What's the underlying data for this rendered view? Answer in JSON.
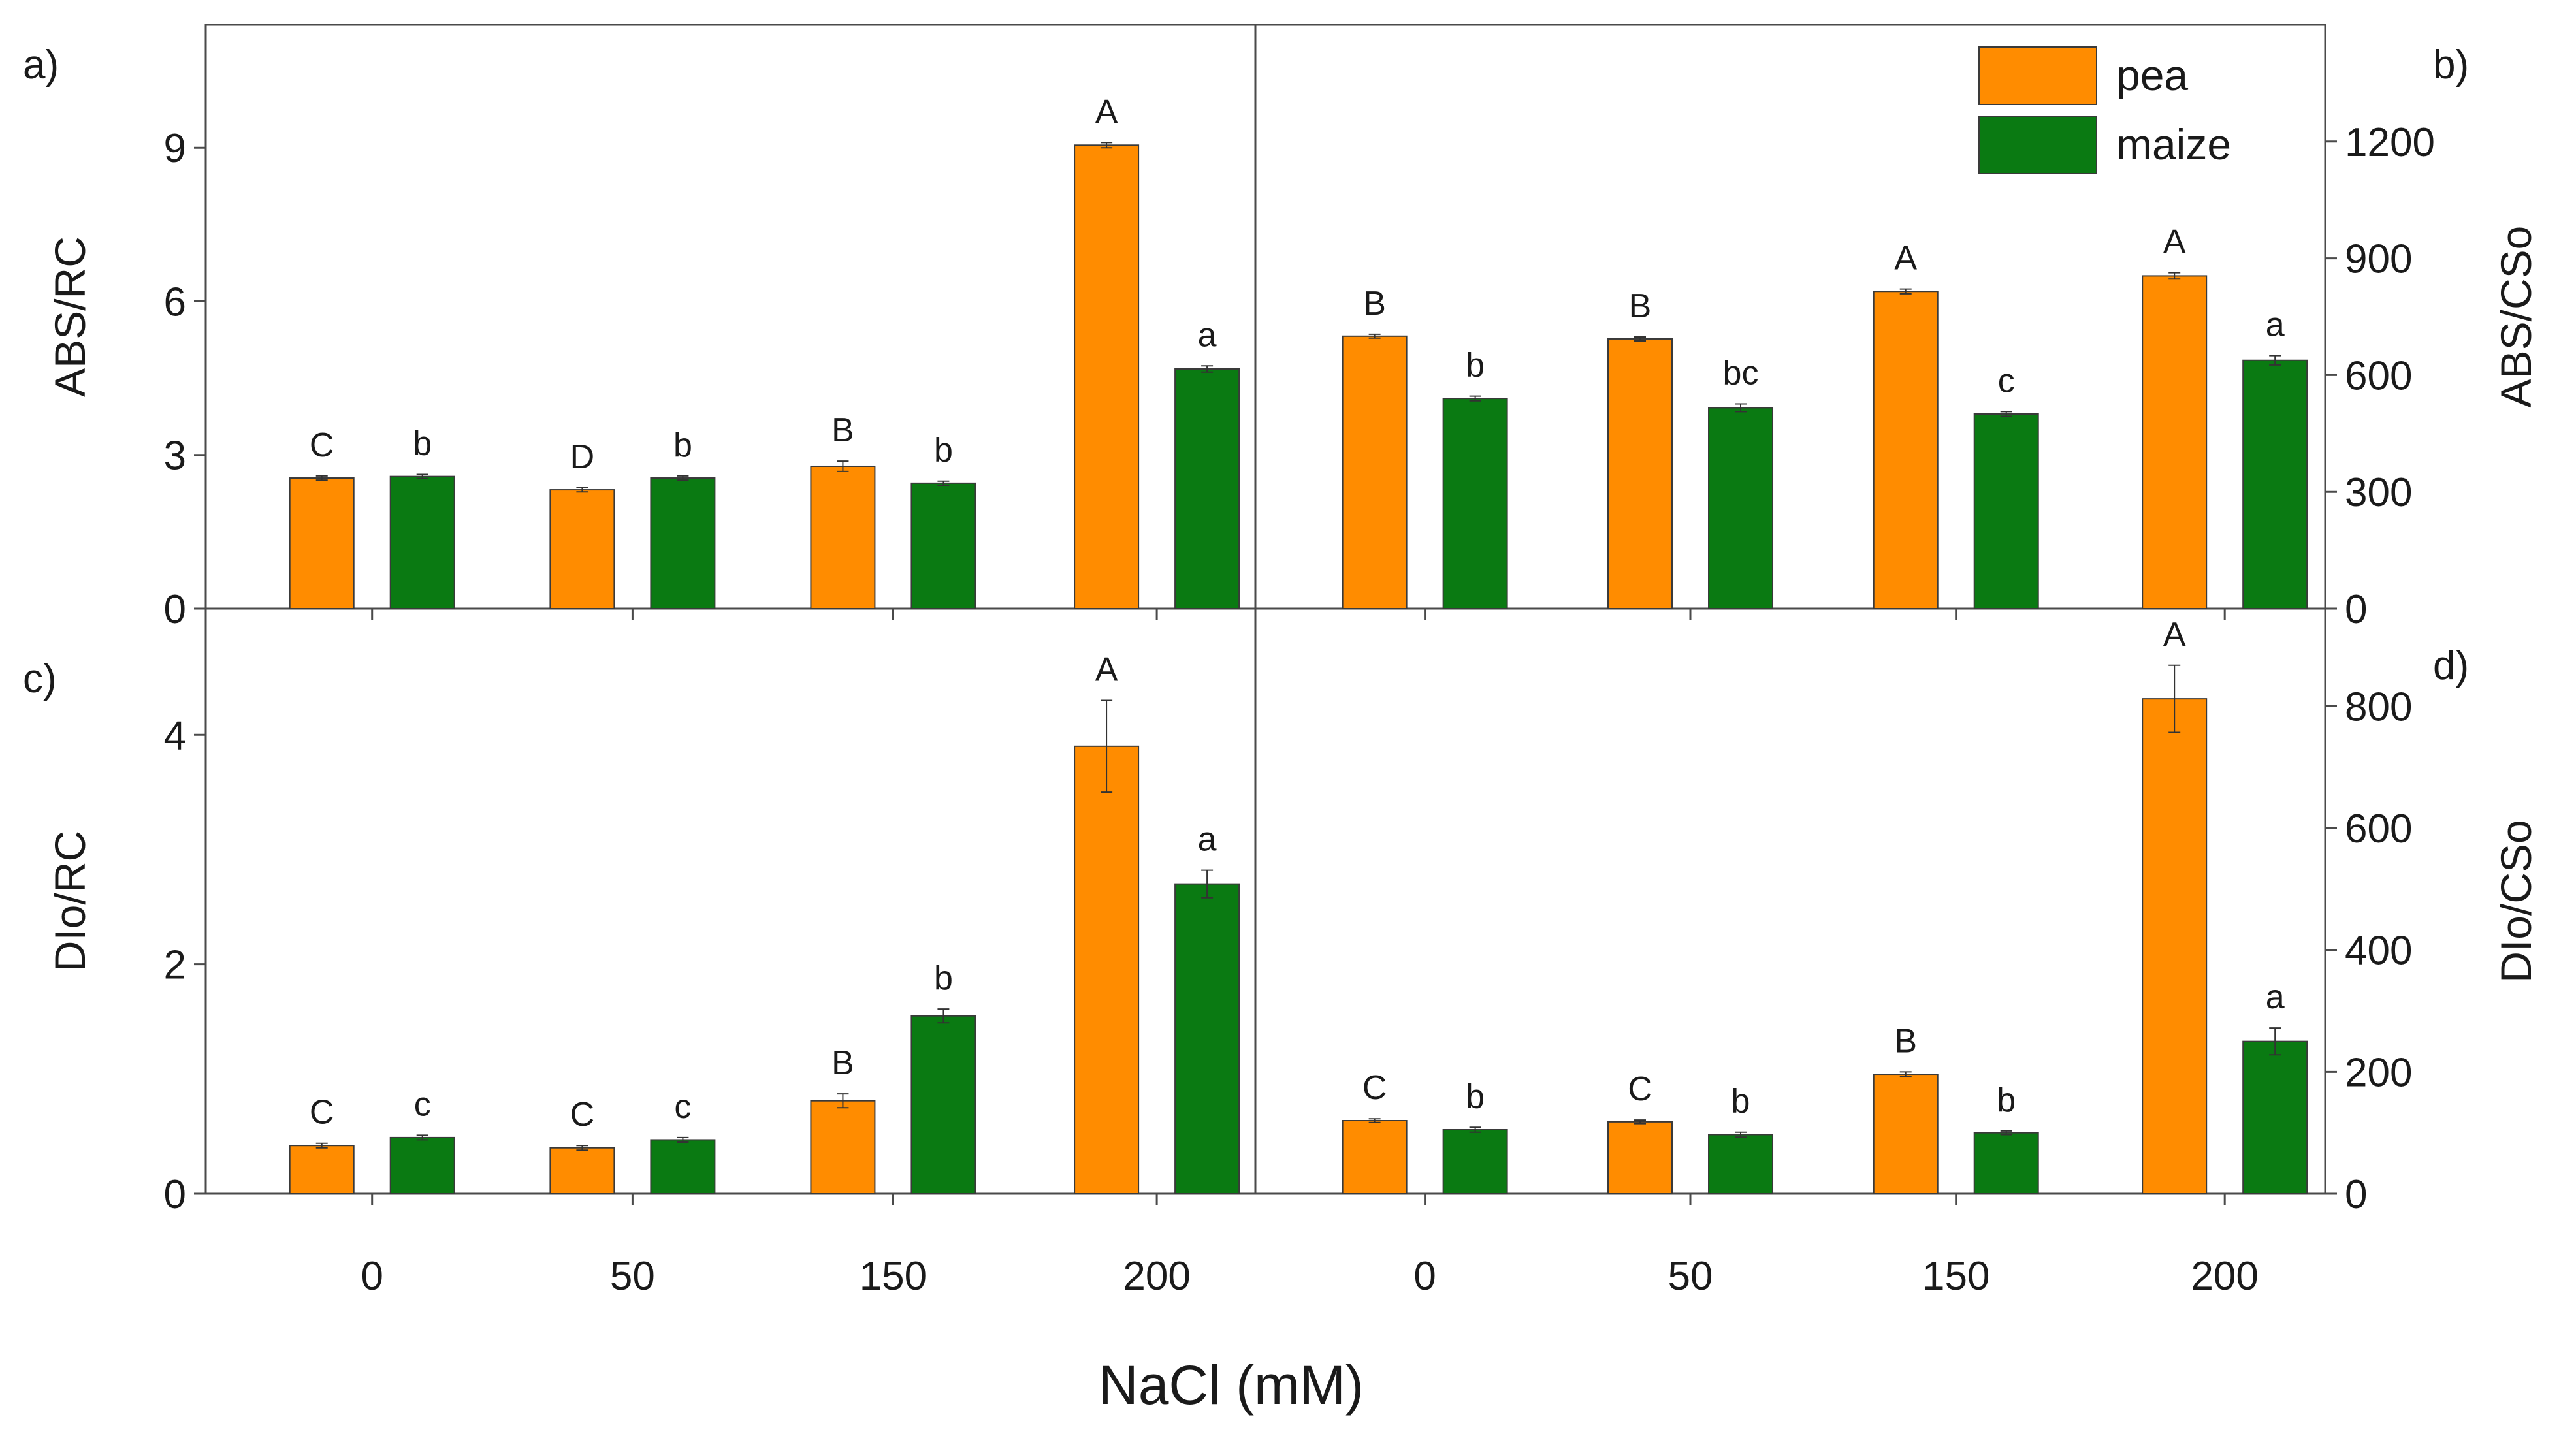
{
  "colors": {
    "pea": "#ff8c00",
    "maize": "#0a7a12",
    "axis": "#4a4a4a",
    "text": "#1a1a1a"
  },
  "legend": [
    {
      "name": "pea",
      "color": "#ff8c00"
    },
    {
      "name": "maize",
      "color": "#0a7a12"
    }
  ],
  "x_axis_title": "NaCl (mM)",
  "chart_data": [
    {
      "type": "bar",
      "panel_label": "a)",
      "ylabel": "ABS/RC",
      "categories": [
        "0",
        "50",
        "150",
        "200"
      ],
      "ylim": [
        0,
        11.4
      ],
      "yticks": [
        0,
        3,
        6,
        9
      ],
      "ytick_labels": [
        "0",
        "3",
        "6",
        "9"
      ],
      "series": [
        {
          "name": "pea",
          "values": [
            2.55,
            2.32,
            2.78,
            9.05
          ],
          "errors": [
            0.04,
            0.04,
            0.1,
            0.05
          ],
          "sig": [
            "C",
            "D",
            "B",
            "A"
          ]
        },
        {
          "name": "maize",
          "values": [
            2.58,
            2.55,
            2.45,
            4.68
          ],
          "errors": [
            0.04,
            0.04,
            0.04,
            0.06
          ],
          "sig": [
            "b",
            "b",
            "b",
            "a"
          ]
        }
      ]
    },
    {
      "type": "bar",
      "panel_label": "b)",
      "ylabel": "ABS/CSo",
      "categories": [
        "0",
        "50",
        "150",
        "200"
      ],
      "ylim": [
        0,
        1500
      ],
      "yticks": [
        0,
        300,
        600,
        900,
        1200
      ],
      "ytick_labels": [
        "0",
        "300",
        "600",
        "900",
        "1200"
      ],
      "series": [
        {
          "name": "pea",
          "values": [
            700,
            693,
            815,
            855
          ],
          "errors": [
            5,
            5,
            6,
            8
          ],
          "sig": [
            "B",
            "B",
            "A",
            "A"
          ]
        },
        {
          "name": "maize",
          "values": [
            540,
            516,
            500,
            638
          ],
          "errors": [
            6,
            10,
            6,
            12
          ],
          "sig": [
            "b",
            "bc",
            "c",
            "a"
          ]
        }
      ]
    },
    {
      "type": "bar",
      "panel_label": "c)",
      "ylabel": "DIo/RC",
      "categories": [
        "0",
        "50",
        "150",
        "200"
      ],
      "ylim": [
        0,
        5.1
      ],
      "yticks": [
        0,
        2,
        4
      ],
      "ytick_labels": [
        "0",
        "2",
        "4"
      ],
      "series": [
        {
          "name": "pea",
          "values": [
            0.42,
            0.4,
            0.81,
            3.9
          ],
          "errors": [
            0.02,
            0.02,
            0.06,
            0.4
          ],
          "sig": [
            "C",
            "C",
            "B",
            "A"
          ]
        },
        {
          "name": "maize",
          "values": [
            0.49,
            0.47,
            1.55,
            2.7
          ],
          "errors": [
            0.02,
            0.02,
            0.06,
            0.12
          ],
          "sig": [
            "c",
            "c",
            "b",
            "a"
          ]
        }
      ]
    },
    {
      "type": "bar",
      "panel_label": "d)",
      "ylabel": "DIo/CSo",
      "categories": [
        "0",
        "50",
        "150",
        "200"
      ],
      "ylim": [
        0,
        960
      ],
      "yticks": [
        0,
        200,
        400,
        600,
        800
      ],
      "ytick_labels": [
        "0",
        "200",
        "400",
        "600",
        "800"
      ],
      "series": [
        {
          "name": "pea",
          "values": [
            120,
            118,
            196,
            812
          ],
          "errors": [
            3,
            3,
            4,
            55
          ],
          "sig": [
            "C",
            "C",
            "B",
            "A"
          ]
        },
        {
          "name": "maize",
          "values": [
            105,
            97,
            100,
            250
          ],
          "errors": [
            4,
            4,
            3,
            22
          ],
          "sig": [
            "b",
            "b",
            "b",
            "a"
          ]
        }
      ]
    }
  ]
}
